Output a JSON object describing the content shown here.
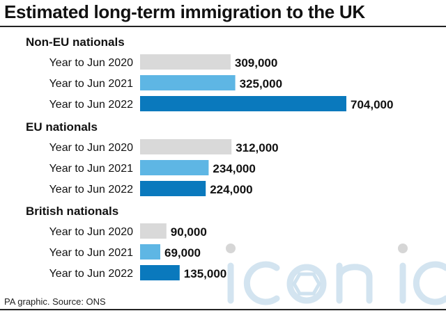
{
  "header": {
    "title": "Estimated long-term immigration to the UK"
  },
  "footer": {
    "source": "PA graphic. Source: ONS"
  },
  "watermark": {
    "text": "iconic"
  },
  "colors": {
    "2020": "#d9d9d9",
    "2021": "#5eb6e4",
    "2022": "#0a79bd"
  },
  "chart_data": {
    "type": "bar",
    "orientation": "horizontal",
    "title": "Estimated long-term immigration to the UK",
    "xlim": [
      0,
      704000
    ],
    "grid": false,
    "legend": "none",
    "groups": [
      {
        "name": "Non-EU nationals",
        "bars": [
          {
            "label": "Year to Jun 2020",
            "value": 309000,
            "value_label": "309,000",
            "year": "2020"
          },
          {
            "label": "Year to Jun 2021",
            "value": 325000,
            "value_label": "325,000",
            "year": "2021"
          },
          {
            "label": "Year to Jun 2022",
            "value": 704000,
            "value_label": "704,000",
            "year": "2022"
          }
        ]
      },
      {
        "name": "EU nationals",
        "bars": [
          {
            "label": "Year to Jun 2020",
            "value": 312000,
            "value_label": "312,000",
            "year": "2020"
          },
          {
            "label": "Year to Jun 2021",
            "value": 234000,
            "value_label": "234,000",
            "year": "2021"
          },
          {
            "label": "Year to Jun 2022",
            "value": 224000,
            "value_label": "224,000",
            "year": "2022"
          }
        ]
      },
      {
        "name": "British nationals",
        "bars": [
          {
            "label": "Year to Jun 2020",
            "value": 90000,
            "value_label": "90,000",
            "year": "2020"
          },
          {
            "label": "Year to Jun 2021",
            "value": 69000,
            "value_label": "69,000",
            "year": "2021"
          },
          {
            "label": "Year to Jun 2022",
            "value": 135000,
            "value_label": "135,000",
            "year": "2022"
          }
        ]
      }
    ]
  }
}
